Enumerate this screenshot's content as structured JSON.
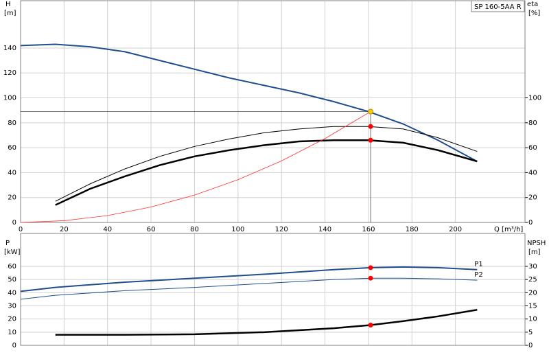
{
  "chart_data": [
    {
      "type": "line",
      "label_box": "SP 160-5AA R",
      "ylabel": "H",
      "yunit": "[m]",
      "y2label": "eta",
      "y2unit": "[%]",
      "xlabel": "Q [m³/h]",
      "xlim": [
        0,
        232
      ],
      "xticks": [
        0,
        20,
        40,
        60,
        80,
        100,
        120,
        140,
        160,
        180,
        200
      ],
      "ylim": [
        0,
        178
      ],
      "yticks": [
        0,
        20,
        40,
        60,
        80,
        100,
        120,
        140
      ],
      "y2lim": [
        0,
        178
      ],
      "y2ticks": [
        0,
        20,
        40,
        60,
        80,
        100
      ],
      "grid": true,
      "series": [
        {
          "color": "#1f4e8c",
          "x": [
            0,
            16,
            32,
            48,
            64,
            80,
            96,
            112,
            128,
            144,
            160,
            176,
            192,
            210
          ],
          "values": [
            142,
            143,
            141,
            137,
            130,
            123,
            116,
            110,
            104,
            97,
            89,
            79,
            66,
            49
          ]
        },
        {
          "color": "#000000",
          "axis": "y2",
          "x": [
            16,
            32,
            48,
            64,
            80,
            96,
            112,
            128,
            144,
            160,
            176,
            192,
            210
          ],
          "values": [
            17,
            31,
            43,
            53,
            61,
            67,
            72,
            75,
            77,
            77,
            75,
            68,
            57
          ]
        },
        {
          "color": "#000000",
          "axis": "y2",
          "x": [
            16,
            32,
            48,
            64,
            80,
            96,
            112,
            128,
            144,
            160,
            176,
            192,
            210
          ],
          "values": [
            14,
            27,
            37,
            46,
            53,
            58,
            62,
            65,
            66,
            66,
            64,
            58,
            49
          ]
        },
        {
          "color": "#ff3030",
          "x": [
            0,
            20,
            40,
            60,
            80,
            100,
            120,
            140,
            161
          ],
          "values": [
            0,
            1.4,
            5.5,
            12.4,
            22,
            34.3,
            49.4,
            67.3,
            89
          ]
        }
      ],
      "points": [
        {
          "x": 161,
          "y": 89,
          "color": "#f5d000"
        },
        {
          "x": 161,
          "y": 77,
          "color": "#ff0000",
          "axis": "y2"
        },
        {
          "x": 161,
          "y": 66,
          "color": "#ff0000",
          "axis": "y2"
        }
      ]
    },
    {
      "type": "line",
      "ylabel": "P",
      "yunit": "[kW]",
      "y2label": "NPSH",
      "y2unit": "[m]",
      "xlim": [
        0,
        232
      ],
      "ylim": [
        0,
        85
      ],
      "yticks": [
        0,
        10,
        20,
        30,
        40,
        50,
        60
      ],
      "y2lim": [
        0,
        42.5
      ],
      "y2ticks": [
        0,
        5,
        10,
        15,
        20,
        25,
        30
      ],
      "grid": true,
      "series": [
        {
          "name": "P1",
          "color": "#1f4e8c",
          "x": [
            0,
            16,
            48,
            80,
            112,
            144,
            161,
            176,
            192,
            210
          ],
          "values": [
            41,
            44,
            48,
            51,
            54,
            57.5,
            59,
            59.5,
            59,
            57.5
          ]
        },
        {
          "name": "P2",
          "color": "#1f4e8c",
          "x": [
            0,
            16,
            48,
            80,
            112,
            144,
            161,
            176,
            192,
            210
          ],
          "values": [
            35,
            38,
            41.5,
            44,
            47,
            50,
            51,
            51,
            50.5,
            49.5
          ]
        },
        {
          "color": "#000000",
          "axis": "y2",
          "x": [
            16,
            48,
            80,
            112,
            144,
            161,
            176,
            192,
            210
          ],
          "values": [
            4,
            4,
            4.2,
            5,
            6.5,
            7.7,
            9.2,
            11,
            13.5
          ]
        }
      ],
      "points": [
        {
          "x": 161,
          "y": 59,
          "color": "#ff0000"
        },
        {
          "x": 161,
          "y": 51,
          "color": "#ff0000"
        },
        {
          "x": 161,
          "y": 7.7,
          "color": "#ff0000",
          "axis": "y2"
        }
      ]
    }
  ]
}
